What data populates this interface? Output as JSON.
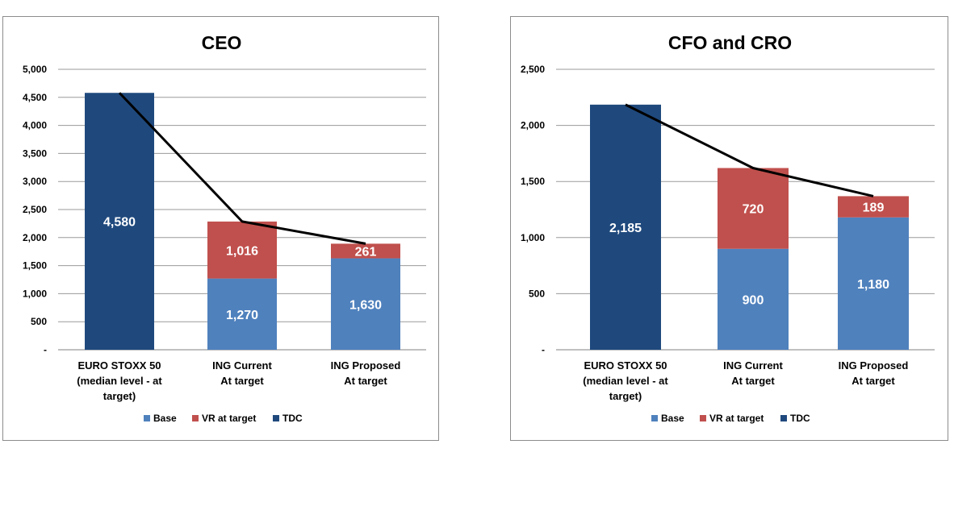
{
  "chart_data": [
    {
      "type": "bar",
      "stacked": true,
      "title": "CEO",
      "categories": [
        [
          "EURO STOXX 50",
          "(median level - at",
          "target)"
        ],
        [
          "ING Current",
          "At target"
        ],
        [
          "ING Proposed",
          "At target"
        ]
      ],
      "series": [
        {
          "name": "Base",
          "values": [
            null,
            1270,
            1630
          ],
          "labels": [
            "",
            "1,270",
            "1,630"
          ],
          "color": "#4f81bd"
        },
        {
          "name": "VR at target",
          "values": [
            null,
            1016,
            261
          ],
          "labels": [
            "",
            "1,016",
            "261"
          ],
          "color": "#c0504d"
        },
        {
          "name": "TDC",
          "values": [
            4580,
            null,
            null
          ],
          "labels": [
            "4,580",
            "",
            ""
          ],
          "color": "#1f497d"
        }
      ],
      "line": {
        "values": [
          4580,
          2286,
          1891
        ],
        "color": "#000000"
      },
      "ylim": [
        0,
        5000
      ],
      "yticks": [
        0,
        500,
        1000,
        1500,
        2000,
        2500,
        3000,
        3500,
        4000,
        4500,
        5000
      ],
      "ytick_labels": [
        "-",
        "500",
        "1,000",
        "1,500",
        "2,000",
        "2,500",
        "3,000",
        "3,500",
        "4,000",
        "4,500",
        "5,000"
      ],
      "grid": true,
      "legend_position": "bottom"
    },
    {
      "type": "bar",
      "stacked": true,
      "title": "CFO and CRO",
      "categories": [
        [
          "EURO STOXX 50",
          "(median level - at",
          "target)"
        ],
        [
          "ING Current",
          "At target"
        ],
        [
          "ING Proposed",
          "At target"
        ]
      ],
      "series": [
        {
          "name": "Base",
          "values": [
            null,
            900,
            1180
          ],
          "labels": [
            "",
            "900",
            "1,180"
          ],
          "color": "#4f81bd"
        },
        {
          "name": "VR at target",
          "values": [
            null,
            720,
            189
          ],
          "labels": [
            "",
            "720",
            "189"
          ],
          "color": "#c0504d"
        },
        {
          "name": "TDC",
          "values": [
            2185,
            null,
            null
          ],
          "labels": [
            "2,185",
            "",
            ""
          ],
          "color": "#1f497d"
        }
      ],
      "line": {
        "values": [
          2185,
          1620,
          1369
        ],
        "color": "#000000"
      },
      "ylim": [
        0,
        2500
      ],
      "yticks": [
        0,
        500,
        1000,
        1500,
        2000,
        2500
      ],
      "ytick_labels": [
        "-",
        "500",
        "1,000",
        "1,500",
        "2,000",
        "2,500"
      ],
      "grid": true,
      "legend_position": "bottom"
    }
  ]
}
